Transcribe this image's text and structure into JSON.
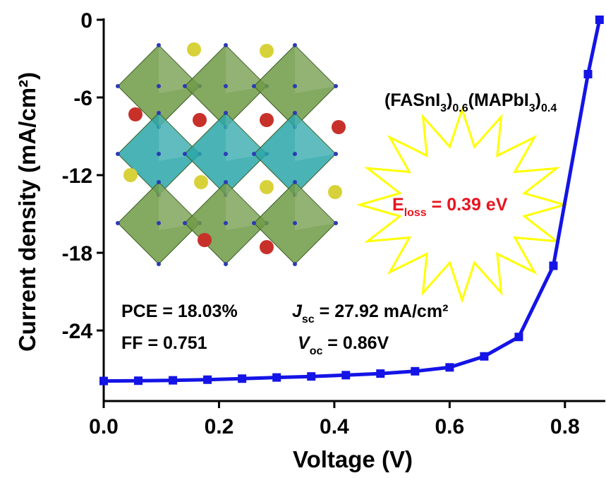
{
  "chart_data": {
    "type": "line",
    "xlabel": "Voltage (V)",
    "ylabel": "Current density (mA/cm²)",
    "x": [
      0,
      0.06,
      0.12,
      0.18,
      0.24,
      0.3,
      0.36,
      0.42,
      0.48,
      0.54,
      0.6,
      0.66,
      0.72,
      0.78,
      0.84,
      0.86
    ],
    "series": [
      {
        "color": "#1414e6",
        "values": [
          -27.9,
          -27.88,
          -27.85,
          -27.8,
          -27.72,
          -27.63,
          -27.55,
          -27.45,
          -27.33,
          -27.15,
          -26.85,
          -26.0,
          -24.5,
          -19.0,
          -4.2,
          0
        ]
      }
    ],
    "xlim": [
      0,
      0.87
    ],
    "ylim": [
      -29.45,
      0
    ],
    "xticks": [
      {
        "value": 0,
        "label": "0.0"
      },
      0.2,
      0.4,
      0.6,
      0.8
    ],
    "yticks": [
      0,
      -6,
      -12,
      -18,
      -24
    ],
    "annotations": {
      "formula": [
        "(FASnI",
        "3",
        ")",
        "0.6",
        "(MAPbI",
        "3",
        ")",
        "0.4"
      ],
      "eloss": [
        "E",
        "loss",
        " = 0.39 eV"
      ],
      "pce": "PCE = 18.03%",
      "ff": "FF = 0.751",
      "jsc": [
        "J",
        "sc",
        " = 27.92 mA/cm²"
      ],
      "voc": [
        "V",
        "oc",
        " = 0.86V"
      ]
    }
  }
}
